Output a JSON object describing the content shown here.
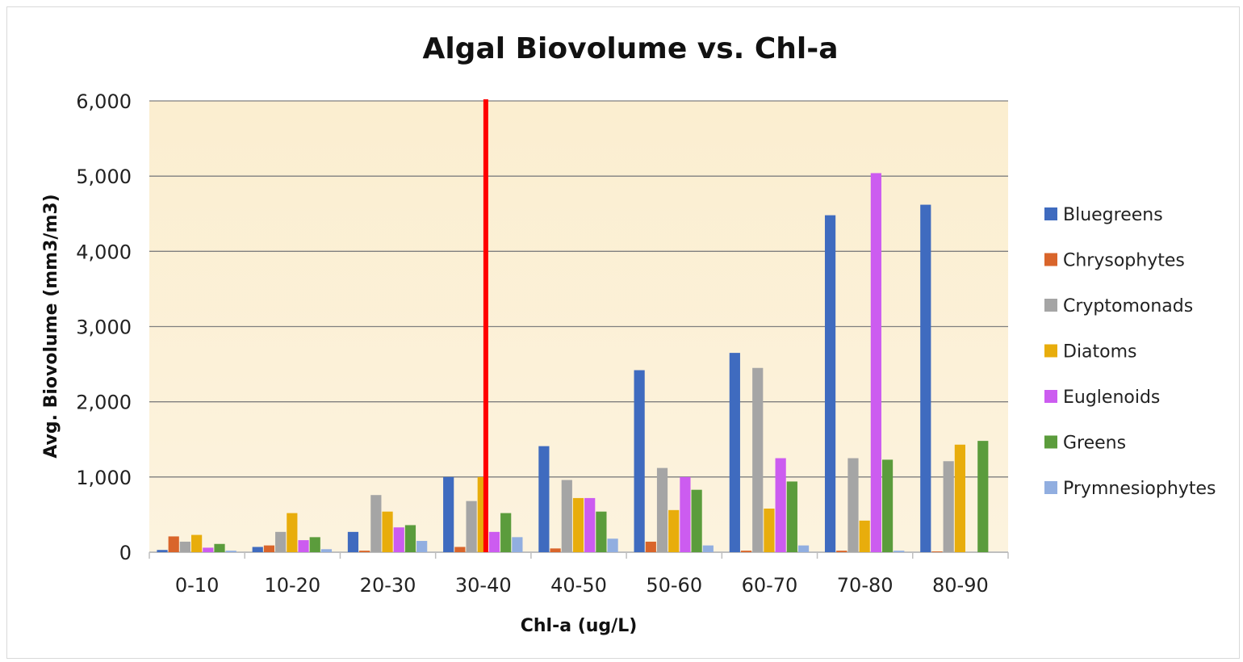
{
  "chart_data": {
    "type": "bar",
    "title": "Algal Biovolume vs. Chl-a",
    "xlabel": "Chl-a (ug/L)",
    "ylabel": "Avg. Biovolume (mm3/m3)",
    "ylim": [
      0,
      6000
    ],
    "yticks": [
      "0",
      "1,000",
      "2,000",
      "3,000",
      "4,000",
      "5,000",
      "6,000"
    ],
    "ytick_values": [
      0,
      1000,
      2000,
      3000,
      4000,
      5000,
      6000
    ],
    "grid": true,
    "legend_position": "right",
    "categories": [
      "0-10",
      "10-20",
      "20-30",
      "30-40",
      "40-50",
      "50-60",
      "60-70",
      "70-80",
      "80-90"
    ],
    "series": [
      {
        "name": "Bluegreens",
        "color": "#3f6bbf",
        "values": [
          30,
          70,
          270,
          1000,
          1410,
          2420,
          2650,
          4480,
          4620
        ]
      },
      {
        "name": "Chrysophytes",
        "color": "#d9652b",
        "values": [
          210,
          90,
          20,
          70,
          50,
          140,
          20,
          20,
          10
        ]
      },
      {
        "name": "Cryptomonads",
        "color": "#a5a5a5",
        "values": [
          140,
          270,
          760,
          680,
          960,
          1120,
          2450,
          1250,
          1210
        ]
      },
      {
        "name": "Diatoms",
        "color": "#e8ad0c",
        "values": [
          230,
          520,
          540,
          1000,
          720,
          560,
          580,
          420,
          1430
        ]
      },
      {
        "name": "Euglenoids",
        "color": "#cc5cf0",
        "values": [
          60,
          160,
          330,
          270,
          720,
          1000,
          1250,
          5040,
          0
        ]
      },
      {
        "name": "Greens",
        "color": "#5b9c3c",
        "values": [
          110,
          200,
          360,
          520,
          540,
          830,
          940,
          1230,
          1480
        ]
      },
      {
        "name": "Prymnesiophytes",
        "color": "#91aee0",
        "values": [
          20,
          40,
          150,
          200,
          180,
          90,
          90,
          20,
          0
        ]
      }
    ],
    "reference_line": {
      "color": "#ff0000",
      "between": [
        "30-40",
        "40-50"
      ]
    },
    "plot_background": "#fbf0d4",
    "gridline_color": "#7f7f7f"
  }
}
